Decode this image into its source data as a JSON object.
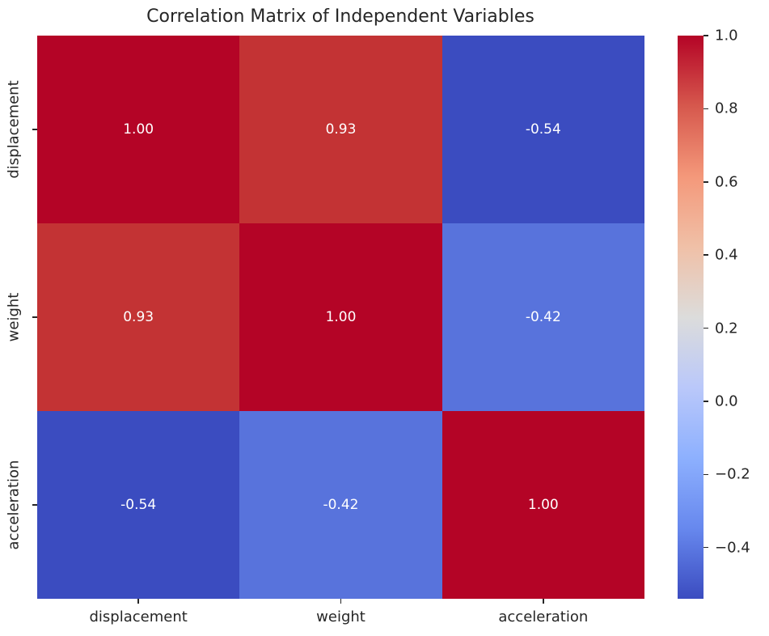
{
  "figure": {
    "title": "Correlation Matrix of Independent Variables"
  },
  "chart_data": {
    "type": "heatmap",
    "title": "Correlation Matrix of Independent Variables",
    "variables": [
      "displacement",
      "weight",
      "acceleration"
    ],
    "x_tick_labels": [
      "displacement",
      "weight",
      "acceleration"
    ],
    "y_tick_labels": [
      "displacement",
      "weight",
      "acceleration"
    ],
    "matrix": [
      [
        1.0,
        0.93,
        -0.54
      ],
      [
        0.93,
        1.0,
        -0.42
      ],
      [
        -0.54,
        -0.42,
        1.0
      ]
    ],
    "cell_labels": [
      [
        "1.00",
        "0.93",
        "-0.54"
      ],
      [
        "0.93",
        "1.00",
        "-0.42"
      ],
      [
        "-0.54",
        "-0.42",
        "1.00"
      ]
    ],
    "cell_colors": [
      [
        "#b40426",
        "#c33334",
        "#3b4cc0"
      ],
      [
        "#c33334",
        "#b40426",
        "#5873dc"
      ],
      [
        "#3b4cc0",
        "#5873dc",
        "#b40426"
      ]
    ],
    "annotation_color": "#ffffff",
    "colormap": "coolwarm",
    "vmin": -0.54,
    "vmax": 1.0,
    "colorbar": {
      "tick_labels": [
        "1.0",
        "0.8",
        "0.6",
        "0.4",
        "0.2",
        "0.0",
        "−0.2",
        "−0.4"
      ],
      "tick_values": [
        1.0,
        0.8,
        0.6,
        0.4,
        0.2,
        0.0,
        -0.2,
        -0.4
      ],
      "gradient_stops": [
        "#b40426",
        "#d6584d",
        "#f4987a",
        "#f0c0a7",
        "#dcdcdb",
        "#bac8fa",
        "#8db0fe",
        "#6788ee",
        "#3b4cc0"
      ]
    },
    "text_color": "#262626",
    "legend_position": "right-colorbar",
    "grid": false
  }
}
